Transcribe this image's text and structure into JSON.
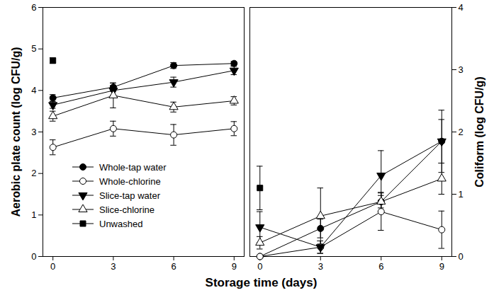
{
  "chart_data": [
    {
      "type": "line",
      "y_label": "Aerobic plate count (log CFU/g)",
      "x_label": "Storage time (days)",
      "x": [
        0,
        3,
        6,
        9
      ],
      "xlim": [
        -0.5,
        9.5
      ],
      "xticks": [
        0,
        3,
        6,
        9
      ],
      "ylim": [
        0,
        6
      ],
      "yticks": [
        0,
        1,
        2,
        3,
        4,
        5,
        6
      ],
      "legend": "lower left",
      "series": [
        {
          "name": "Whole-tap water",
          "color": "#000000",
          "marker": "circle",
          "values": [
            3.82,
            4.08,
            4.6,
            4.65
          ],
          "errors": [
            0.08,
            0.1,
            0.07,
            0.05
          ]
        },
        {
          "name": "Whole-chlorine",
          "color": "#000000",
          "marker": "open-circle",
          "values": [
            2.63,
            3.08,
            2.93,
            3.08
          ],
          "errors": [
            0.18,
            0.18,
            0.25,
            0.17
          ]
        },
        {
          "name": "Slice-tap water",
          "color": "#000000",
          "marker": "triangle-down",
          "values": [
            3.65,
            4.0,
            4.2,
            4.48
          ],
          "errors": [
            0.08,
            0.12,
            0.12,
            0.1
          ]
        },
        {
          "name": "Slice-chlorine",
          "color": "#000000",
          "marker": "open-triangle",
          "values": [
            3.38,
            3.88,
            3.6,
            3.75
          ],
          "errors": [
            0.12,
            0.3,
            0.12,
            0.1
          ]
        },
        {
          "name": "Unwashed",
          "color": "#000000",
          "marker": "square",
          "values": [
            4.72,
            null,
            null,
            null
          ],
          "errors": [
            0.07,
            null,
            null,
            null
          ]
        }
      ]
    },
    {
      "type": "line",
      "y_label": "Coliform (log CFU/g)",
      "x": [
        0,
        3,
        6,
        9
      ],
      "xlim": [
        -0.5,
        9.5
      ],
      "xticks": [
        0,
        3,
        6,
        9
      ],
      "y2lim": [
        0,
        4
      ],
      "y2ticks": [
        0,
        1,
        2,
        3,
        4
      ],
      "series": [
        {
          "name": "Whole-tap water",
          "color": "#000000",
          "marker": "circle",
          "axis": "y2",
          "values": [
            0,
            0.45,
            0.88,
            1.85
          ],
          "errors": [
            0,
            0.15,
            0.15,
            0.5
          ]
        },
        {
          "name": "Whole-chlorine",
          "color": "#000000",
          "marker": "open-circle",
          "axis": "y2",
          "values": [
            0,
            0.15,
            0.72,
            0.43
          ],
          "errors": [
            0,
            0.1,
            0.3,
            0.3
          ]
        },
        {
          "name": "Slice-tap water",
          "color": "#000000",
          "marker": "triangle-down",
          "axis": "y2",
          "values": [
            0.47,
            0.15,
            1.3,
            1.85
          ],
          "errors": [
            0.25,
            0.1,
            0.4,
            0.35
          ]
        },
        {
          "name": "Slice-chlorine",
          "color": "#000000",
          "marker": "open-triangle",
          "axis": "y2",
          "values": [
            0.22,
            0.65,
            0.88,
            1.25
          ],
          "errors": [
            0.1,
            0.45,
            0.1,
            0.25
          ]
        },
        {
          "name": "Unwashed",
          "color": "#000000",
          "marker": "square",
          "axis": "y2",
          "values": [
            1.1,
            null,
            null,
            null
          ],
          "errors": [
            0.35,
            null,
            null,
            null
          ]
        }
      ]
    }
  ]
}
